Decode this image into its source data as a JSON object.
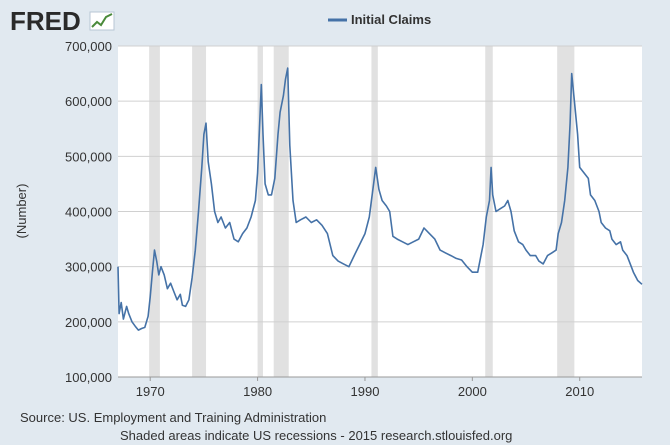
{
  "brand": {
    "logo_text": "FRED",
    "logo_icon": "fred-chart-icon"
  },
  "colors": {
    "background": "#e1e9f0",
    "plot_background": "#ffffff",
    "series": "#4572a7",
    "recession": "#e1e1e1",
    "grid": "#d0d0d0"
  },
  "footer": {
    "source": "Source: US. Employment and Training Administration",
    "note": "Shaded areas indicate US recessions - 2015 research.stlouisfed.org"
  },
  "chart_data": {
    "type": "line",
    "title": "",
    "xlabel": "",
    "ylabel": "(Number)",
    "xlim": [
      1967.0,
      2015.8
    ],
    "ylim": [
      100000,
      700000
    ],
    "grid": true,
    "legend_position": "top-center",
    "y_ticks": [
      {
        "value": 100000,
        "label": "100,000"
      },
      {
        "value": 200000,
        "label": "200,000"
      },
      {
        "value": 300000,
        "label": "300,000"
      },
      {
        "value": 400000,
        "label": "400,000"
      },
      {
        "value": 500000,
        "label": "500,000"
      },
      {
        "value": 600000,
        "label": "600,000"
      },
      {
        "value": 700000,
        "label": "700,000"
      }
    ],
    "x_ticks": [
      {
        "value": 1970,
        "label": "1970"
      },
      {
        "value": 1980,
        "label": "1980"
      },
      {
        "value": 1990,
        "label": "1990"
      },
      {
        "value": 2000,
        "label": "2000"
      },
      {
        "value": 2010,
        "label": "2010"
      }
    ],
    "recessions": [
      [
        1969.9,
        1970.9
      ],
      [
        1973.9,
        1975.2
      ],
      [
        1980.0,
        1980.5
      ],
      [
        1981.5,
        1982.9
      ],
      [
        1990.6,
        1991.2
      ],
      [
        2001.2,
        2001.9
      ],
      [
        2007.9,
        2009.5
      ]
    ],
    "series": [
      {
        "name": "Initial Claims",
        "x": [
          1967.0,
          1967.1,
          1967.3,
          1967.5,
          1967.8,
          1968.0,
          1968.3,
          1968.6,
          1968.9,
          1969.2,
          1969.5,
          1969.8,
          1970.0,
          1970.2,
          1970.4,
          1970.6,
          1970.8,
          1971.0,
          1971.3,
          1971.6,
          1971.9,
          1972.2,
          1972.5,
          1972.8,
          1973.0,
          1973.3,
          1973.6,
          1973.9,
          1974.2,
          1974.5,
          1974.8,
          1975.0,
          1975.2,
          1975.4,
          1975.7,
          1976.0,
          1976.3,
          1976.6,
          1977.0,
          1977.4,
          1977.8,
          1978.2,
          1978.6,
          1979.0,
          1979.4,
          1979.8,
          1980.0,
          1980.2,
          1980.35,
          1980.5,
          1980.7,
          1981.0,
          1981.3,
          1981.6,
          1981.9,
          1982.1,
          1982.4,
          1982.6,
          1982.8,
          1983.0,
          1983.3,
          1983.6,
          1984.0,
          1984.5,
          1985.0,
          1985.5,
          1986.0,
          1986.5,
          1987.0,
          1987.5,
          1988.0,
          1988.5,
          1989.0,
          1989.5,
          1990.0,
          1990.4,
          1990.8,
          1991.0,
          1991.3,
          1991.6,
          1992.0,
          1992.3,
          1992.6,
          1993.0,
          1993.5,
          1994.0,
          1994.5,
          1995.0,
          1995.5,
          1996.0,
          1996.5,
          1997.0,
          1997.5,
          1998.0,
          1998.5,
          1999.0,
          1999.5,
          2000.0,
          2000.5,
          2001.0,
          2001.3,
          2001.6,
          2001.75,
          2001.9,
          2002.2,
          2002.6,
          2003.0,
          2003.3,
          2003.6,
          2003.9,
          2004.3,
          2004.7,
          2005.0,
          2005.4,
          2005.7,
          2005.9,
          2006.2,
          2006.6,
          2007.0,
          2007.4,
          2007.8,
          2008.0,
          2008.3,
          2008.6,
          2008.9,
          2009.1,
          2009.25,
          2009.5,
          2009.8,
          2010.0,
          2010.4,
          2010.8,
          2011.0,
          2011.4,
          2011.8,
          2012.0,
          2012.4,
          2012.8,
          2013.0,
          2013.4,
          2013.8,
          2014.0,
          2014.4,
          2014.8,
          2015.0,
          2015.4,
          2015.8
        ],
        "values": [
          300000,
          215000,
          235000,
          205000,
          228000,
          215000,
          200000,
          192000,
          185000,
          188000,
          190000,
          210000,
          245000,
          290000,
          330000,
          310000,
          285000,
          300000,
          285000,
          260000,
          270000,
          255000,
          240000,
          250000,
          230000,
          228000,
          240000,
          280000,
          330000,
          400000,
          480000,
          540000,
          560000,
          490000,
          450000,
          400000,
          380000,
          390000,
          370000,
          380000,
          350000,
          345000,
          360000,
          370000,
          390000,
          420000,
          470000,
          560000,
          630000,
          540000,
          450000,
          430000,
          430000,
          460000,
          540000,
          580000,
          610000,
          640000,
          660000,
          520000,
          420000,
          380000,
          385000,
          390000,
          380000,
          385000,
          375000,
          360000,
          320000,
          310000,
          305000,
          300000,
          320000,
          340000,
          360000,
          390000,
          450000,
          480000,
          440000,
          420000,
          410000,
          400000,
          355000,
          350000,
          345000,
          340000,
          345000,
          350000,
          370000,
          360000,
          350000,
          330000,
          325000,
          320000,
          315000,
          312000,
          300000,
          290000,
          290000,
          340000,
          390000,
          420000,
          480000,
          430000,
          400000,
          405000,
          410000,
          420000,
          400000,
          365000,
          345000,
          340000,
          330000,
          320000,
          320000,
          320000,
          310000,
          305000,
          320000,
          325000,
          330000,
          360000,
          380000,
          420000,
          480000,
          560000,
          650000,
          600000,
          540000,
          480000,
          470000,
          460000,
          430000,
          420000,
          400000,
          380000,
          370000,
          365000,
          350000,
          340000,
          345000,
          330000,
          320000,
          300000,
          290000,
          275000,
          268000
        ]
      }
    ]
  }
}
